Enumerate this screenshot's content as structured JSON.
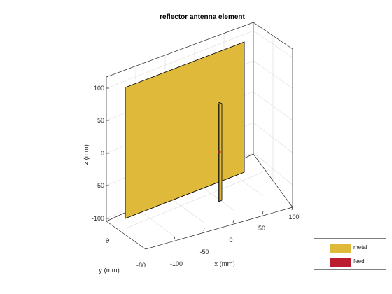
{
  "title": "reflector antenna element",
  "axes": {
    "xlabel": "x (mm)",
    "ylabel": "y (mm)",
    "zlabel": "z (mm)",
    "z_ticks": [
      "100",
      "50",
      "0",
      "-50",
      "-100"
    ],
    "x_ticks": [
      "-100",
      "-50",
      "0",
      "50",
      "100"
    ],
    "y_ticks": [
      "0",
      "-80"
    ],
    "grid": true
  },
  "legend": {
    "items": [
      {
        "label": "metal",
        "color": "#dfb93a"
      },
      {
        "label": "feed",
        "color": "#bc1c2f"
      }
    ],
    "placement": "bottom-right"
  },
  "colors": {
    "metal": "#dfb93a",
    "feed": "#bc1c2f",
    "edge": "#000000"
  }
}
